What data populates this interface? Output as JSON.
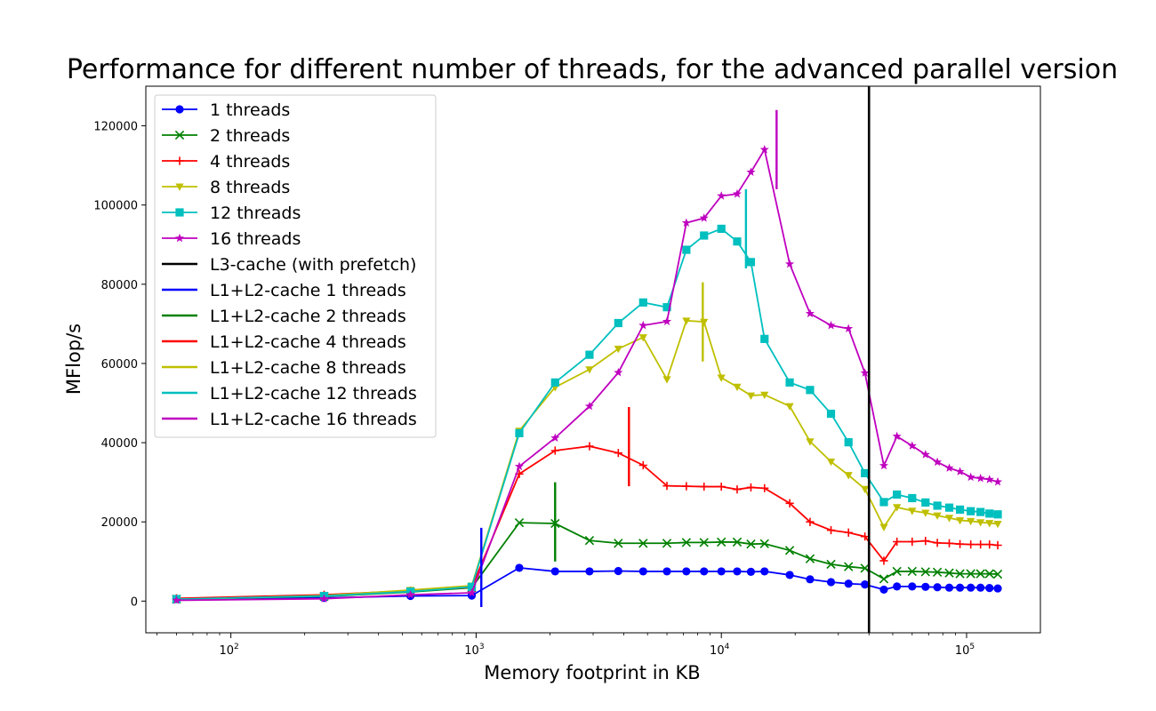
{
  "chart_data": {
    "type": "line",
    "title": "Performance for different number of threads, for the advanced parallel version",
    "xlabel": "Memory footprint in KB",
    "ylabel": "MFlop/s",
    "xscale": "log",
    "xlim": [
      45,
      200000
    ],
    "ylim": [
      -8000,
      130000
    ],
    "yticks": [
      0,
      20000,
      40000,
      60000,
      80000,
      100000,
      120000
    ],
    "xticks": [
      {
        "value": 100,
        "base": "10",
        "exp": "2"
      },
      {
        "value": 1000,
        "base": "10",
        "exp": "3"
      },
      {
        "value": 10000,
        "base": "10",
        "exp": "4"
      },
      {
        "value": 100000,
        "base": "10",
        "exp": "5"
      }
    ],
    "grid": false,
    "legend_position": "upper-left",
    "x": [
      60,
      240,
      540,
      960,
      1500,
      2100,
      2900,
      3800,
      4800,
      6000,
      7200,
      8500,
      10000,
      11600,
      13200,
      15000,
      19000,
      23000,
      28000,
      33000,
      38500,
      46000,
      52000,
      60000,
      68000,
      76000,
      85000,
      94000,
      104000,
      114000,
      124000,
      134000
    ],
    "series": [
      {
        "name": "1 threads",
        "color": "#0000ff",
        "marker": "circle",
        "values": [
          600,
          800,
          1300,
          1400,
          8400,
          7500,
          7500,
          7600,
          7500,
          7500,
          7500,
          7500,
          7500,
          7500,
          7400,
          7500,
          6600,
          5500,
          4800,
          4400,
          4200,
          2900,
          3700,
          3700,
          3600,
          3500,
          3400,
          3400,
          3400,
          3400,
          3300,
          3200
        ]
      },
      {
        "name": "2 threads",
        "color": "#008000",
        "marker": "x",
        "values": [
          500,
          1200,
          2300,
          3400,
          19800,
          19600,
          15300,
          14600,
          14600,
          14600,
          14800,
          14800,
          14900,
          14900,
          14400,
          14500,
          12800,
          10700,
          9300,
          8700,
          8300,
          5600,
          7500,
          7500,
          7400,
          7300,
          7100,
          6900,
          6900,
          6900,
          6900,
          6800
        ]
      },
      {
        "name": "4 threads",
        "color": "#ff0000",
        "marker": "plus",
        "values": [
          700,
          1600,
          2600,
          3500,
          32100,
          38000,
          39100,
          37400,
          34300,
          29100,
          29000,
          28900,
          28900,
          28200,
          28700,
          28500,
          24700,
          20000,
          17900,
          17300,
          16300,
          10200,
          15000,
          15000,
          15200,
          14700,
          14600,
          14400,
          14300,
          14300,
          14300,
          14100
        ]
      },
      {
        "name": "8 threads",
        "color": "#bfbf00",
        "marker": "triangle-down",
        "values": [
          400,
          1400,
          2800,
          3900,
          43000,
          54000,
          58500,
          63700,
          66600,
          56000,
          70800,
          70500,
          56400,
          54100,
          51900,
          52100,
          49200,
          40300,
          35200,
          31800,
          28300,
          18700,
          23700,
          22800,
          22300,
          21600,
          21000,
          20400,
          20200,
          19900,
          19700,
          19500
        ]
      },
      {
        "name": "12 threads",
        "color": "#00bfbf",
        "marker": "square",
        "values": [
          500,
          1300,
          2400,
          3600,
          42400,
          55200,
          62200,
          70200,
          75400,
          74200,
          88700,
          92300,
          94000,
          90800,
          85600,
          66200,
          55200,
          53300,
          47300,
          40100,
          32300,
          25000,
          26900,
          26000,
          24900,
          24100,
          23600,
          23100,
          22700,
          22500,
          22100,
          21900
        ]
      },
      {
        "name": "16 threads",
        "color": "#bf00bf",
        "marker": "star",
        "values": [
          200,
          600,
          1600,
          2100,
          34000,
          41200,
          49200,
          57700,
          69600,
          70600,
          95500,
          96700,
          102300,
          102800,
          108300,
          114000,
          85100,
          72600,
          69600,
          68800,
          57600,
          34200,
          41600,
          39200,
          37000,
          35100,
          33600,
          32700,
          31300,
          31000,
          30700,
          30100
        ]
      }
    ],
    "vlines": [
      {
        "name": "L3-cache (with prefetch)",
        "color": "#000000",
        "x": 40000,
        "ymin": -8000,
        "ymax": 130000
      },
      {
        "name": "L1+L2-cache 1 threads",
        "color": "#0000ff",
        "x": 1050,
        "ymin": -1500,
        "ymax": 18500
      },
      {
        "name": "L1+L2-cache 2 threads",
        "color": "#008000",
        "x": 2100,
        "ymin": 10000,
        "ymax": 30000
      },
      {
        "name": "L1+L2-cache 4 threads",
        "color": "#ff0000",
        "x": 4200,
        "ymin": 29000,
        "ymax": 49000
      },
      {
        "name": "L1+L2-cache 8 threads",
        "color": "#bfbf00",
        "x": 8400,
        "ymin": 60500,
        "ymax": 80500
      },
      {
        "name": "L1+L2-cache 12 threads",
        "color": "#00bfbf",
        "x": 12600,
        "ymin": 84000,
        "ymax": 104000
      },
      {
        "name": "L1+L2-cache 16 threads",
        "color": "#bf00bf",
        "x": 16800,
        "ymin": 104000,
        "ymax": 124000
      }
    ]
  }
}
